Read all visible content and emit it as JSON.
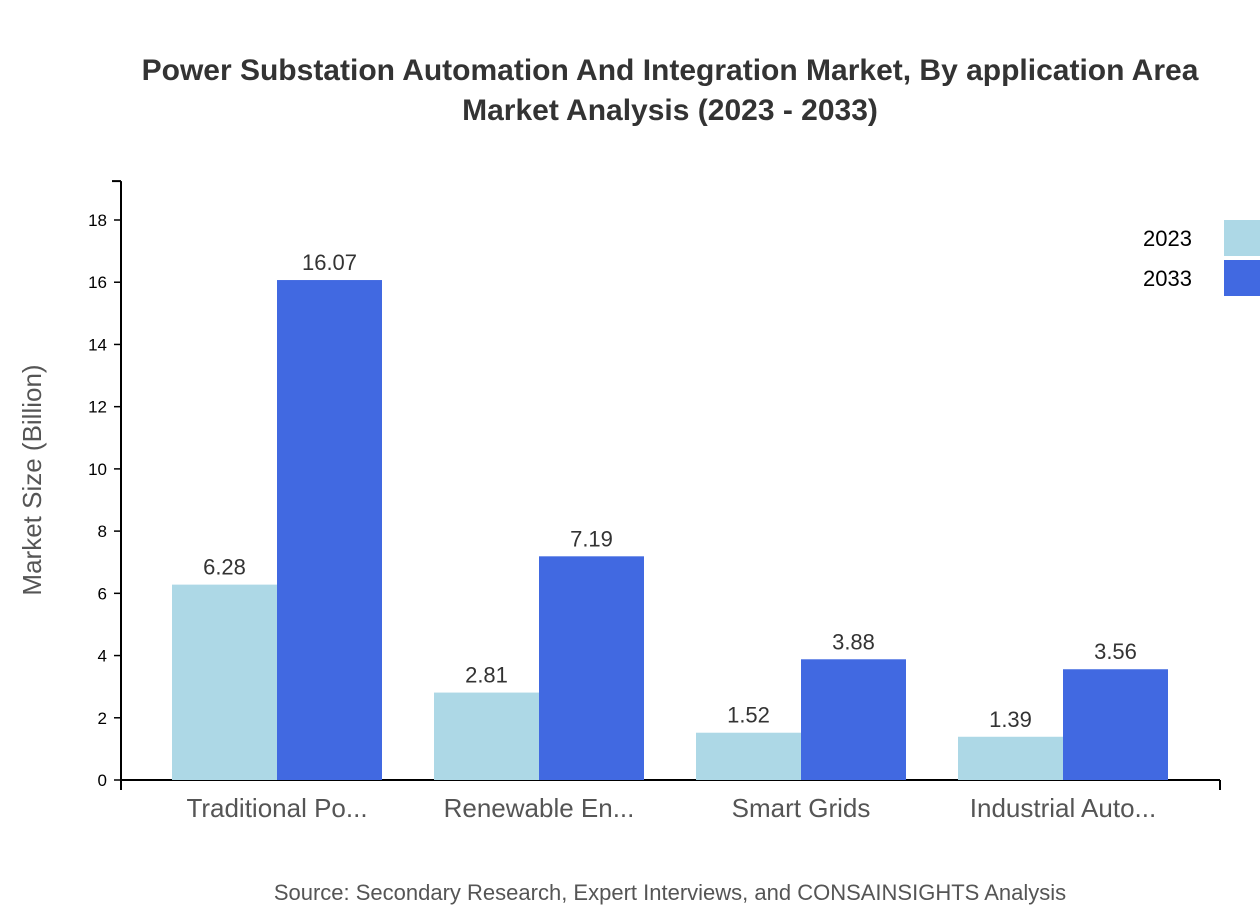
{
  "chart_data": {
    "type": "bar",
    "title": [
      "Power Substation Automation And Integration Market, By application Area",
      "Market Analysis (2023 - 2033)"
    ],
    "xlabel": "",
    "ylabel": "Market Size (Billion)",
    "ylim": [
      0,
      19.25
    ],
    "yticks": [
      0,
      2,
      4,
      6,
      8,
      10,
      12,
      14,
      16,
      18
    ],
    "categories": [
      "Traditional Po...",
      "Renewable En...",
      "Smart Grids",
      "Industrial Auto..."
    ],
    "series": [
      {
        "name": "2023",
        "color": "#add8e6",
        "values": [
          6.28,
          2.81,
          1.52,
          1.39
        ]
      },
      {
        "name": "2033",
        "color": "#4169e1",
        "values": [
          16.07,
          7.19,
          3.88,
          3.56
        ]
      }
    ],
    "legend_position": "top-right",
    "grid": false,
    "source": "Source: Secondary Research, Expert Interviews, and CONSAINSIGHTS Analysis"
  }
}
